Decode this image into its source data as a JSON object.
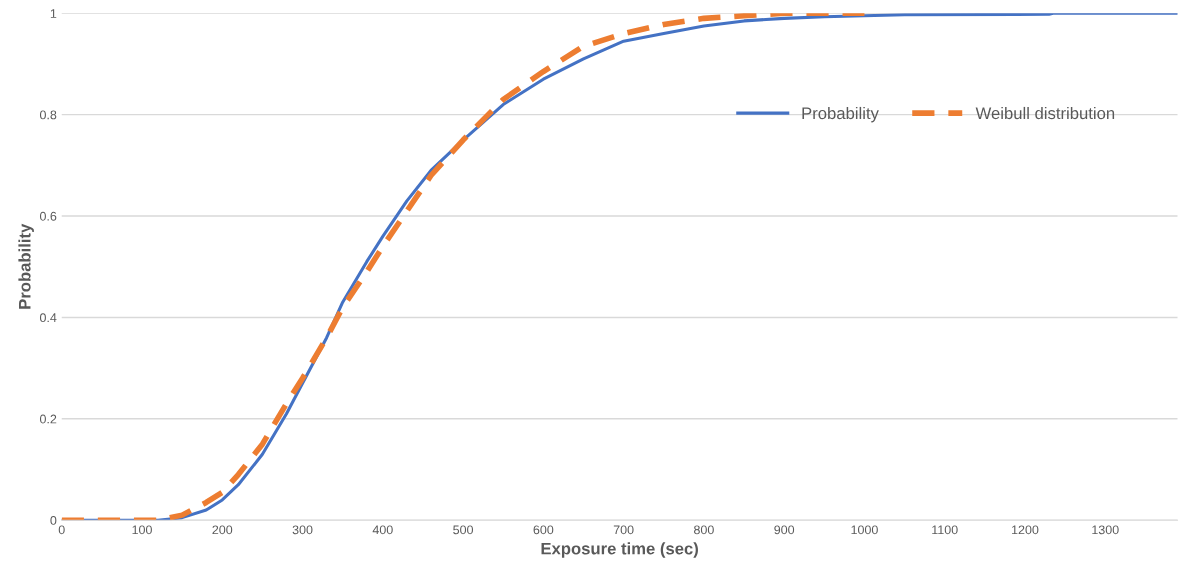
{
  "chart_data": {
    "type": "line",
    "xlabel": "Exposure time (sec)",
    "ylabel": "Probability",
    "xlim": [
      0,
      1390
    ],
    "ylim": [
      0,
      1
    ],
    "xticks": [
      0,
      100,
      200,
      300,
      400,
      500,
      600,
      700,
      800,
      900,
      1000,
      1100,
      1200,
      1300
    ],
    "yticks": [
      0,
      0.2,
      0.4,
      0.6,
      0.8,
      1
    ],
    "grid": "y",
    "legend": "right",
    "series": [
      {
        "name": "Probability",
        "color": "#4472c4",
        "line_style": "solid",
        "x": [
          0,
          120,
          150,
          180,
          200,
          220,
          250,
          280,
          300,
          330,
          350,
          380,
          400,
          430,
          460,
          500,
          550,
          600,
          650,
          700,
          750,
          800,
          850,
          900,
          950,
          1000,
          1050,
          1230,
          1235,
          1390
        ],
        "values": [
          0,
          0,
          0.005,
          0.02,
          0.04,
          0.07,
          0.13,
          0.21,
          0.27,
          0.36,
          0.43,
          0.51,
          0.56,
          0.63,
          0.69,
          0.75,
          0.82,
          0.87,
          0.91,
          0.945,
          0.96,
          0.975,
          0.985,
          0.99,
          0.993,
          0.995,
          0.997,
          0.998,
          1,
          1
        ]
      },
      {
        "name": "Weibull distribution",
        "color": "#ed7d31",
        "line_style": "dashed",
        "x": [
          0,
          120,
          150,
          180,
          200,
          220,
          250,
          280,
          300,
          330,
          350,
          380,
          400,
          430,
          460,
          500,
          550,
          600,
          650,
          700,
          750,
          800,
          850,
          900,
          1000
        ],
        "values": [
          0,
          0,
          0.01,
          0.035,
          0.055,
          0.09,
          0.15,
          0.23,
          0.28,
          0.36,
          0.42,
          0.49,
          0.54,
          0.61,
          0.68,
          0.75,
          0.83,
          0.885,
          0.935,
          0.96,
          0.978,
          0.99,
          0.995,
          1,
          1
        ]
      }
    ]
  }
}
